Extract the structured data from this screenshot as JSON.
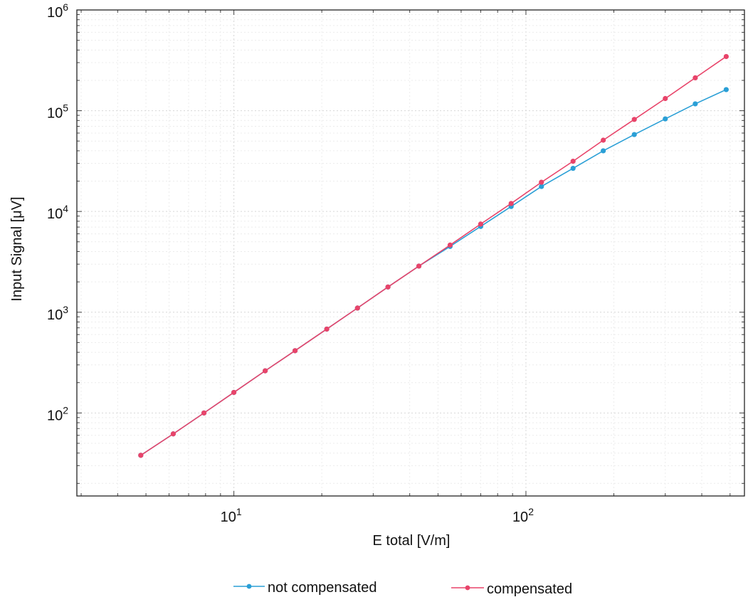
{
  "chart_data": {
    "type": "line",
    "xlabel": "E total [V/m]",
    "ylabel": "Input Signal [μV]",
    "x_scale": "log",
    "y_scale": "log",
    "xlim": [
      2.9,
      560
    ],
    "ylim": [
      15,
      1000000
    ],
    "x_ticks": [
      {
        "value": 10,
        "base": "10",
        "exp": "1"
      },
      {
        "value": 100,
        "base": "10",
        "exp": "2"
      }
    ],
    "y_ticks": [
      {
        "value": 100,
        "base": "10",
        "exp": "2"
      },
      {
        "value": 1000,
        "base": "10",
        "exp": "3"
      },
      {
        "value": 10000,
        "base": "10",
        "exp": "4"
      },
      {
        "value": 100000,
        "base": "10",
        "exp": "5"
      },
      {
        "value": 1000000,
        "base": "10",
        "exp": "6"
      }
    ],
    "grid": "faint",
    "legend_position": "bottom",
    "series": [
      {
        "name": "not compensated",
        "color": "#2a9fd6",
        "x": [
          4.8,
          6.2,
          7.9,
          10.0,
          12.8,
          16.2,
          20.8,
          26.5,
          33.7,
          43.0,
          55.0,
          70.0,
          89.0,
          113.0,
          145.0,
          184.0,
          235.0,
          300.0,
          380.0,
          485.0
        ],
        "y": [
          38,
          62,
          100,
          160,
          262,
          415,
          680,
          1100,
          1780,
          2870,
          4500,
          7100,
          11200,
          17700,
          26800,
          40000,
          58000,
          83000,
          117000,
          162000
        ]
      },
      {
        "name": "compensated",
        "color": "#e8446a",
        "x": [
          4.8,
          6.2,
          7.9,
          10.0,
          12.8,
          16.2,
          20.8,
          26.5,
          33.7,
          43.0,
          55.0,
          70.0,
          89.0,
          113.0,
          145.0,
          184.0,
          235.0,
          300.0,
          380.0,
          485.0
        ],
        "y": [
          38,
          62,
          100,
          160,
          262,
          415,
          680,
          1100,
          1780,
          2870,
          4640,
          7500,
          12000,
          19500,
          31500,
          51000,
          82000,
          132000,
          212000,
          345000
        ]
      }
    ]
  }
}
